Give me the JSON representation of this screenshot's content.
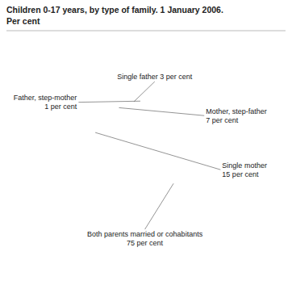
{
  "chart_data": {
    "type": "pie",
    "title": "Children 0-17 years, by type of family. 1 January 2006.",
    "subtitle": "Per cent",
    "categories": [
      "Both parents married or cohabitants\n75 per cent",
      "Single mother\n15 per cent",
      "Mother, step-father\n7 per cent",
      "Single father 3 per cent",
      "Father, step-mother\n1 per cent"
    ],
    "values": [
      75,
      15,
      7,
      3,
      1
    ],
    "colors": [
      "#c8c8c8",
      "#147878",
      "#40b8b8",
      "#1a3a8a",
      "#c8c8c8"
    ]
  }
}
